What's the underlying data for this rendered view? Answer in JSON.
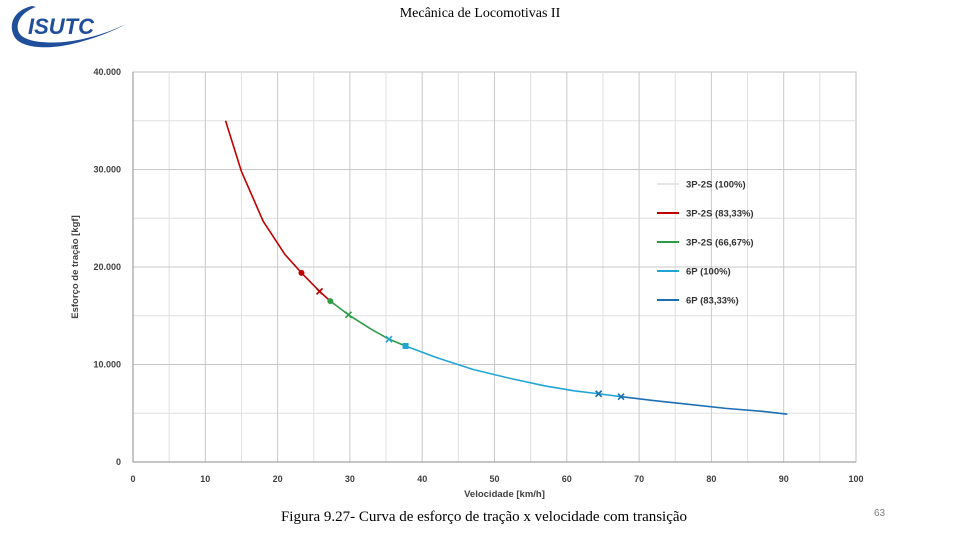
{
  "header": {
    "logo_text": "ISUTC",
    "title": "Mecânica de Locomotivas II"
  },
  "chart_data": {
    "type": "line",
    "title": "",
    "xlabel": "Velocidade [km/h]",
    "ylabel": "Esforço de tração [kgf]",
    "xlim": [
      0,
      100
    ],
    "ylim": [
      0,
      40000
    ],
    "x_ticks": [
      "0",
      "10",
      "20",
      "30",
      "40",
      "50",
      "60",
      "70",
      "80",
      "90",
      "100"
    ],
    "y_ticks": [
      "0",
      "10.000",
      "20.000",
      "30.000",
      "40.000"
    ],
    "grid": true,
    "legend_position": "right",
    "series": [
      {
        "name": "3P-2S (100%)",
        "color": "#e6e6e6",
        "x": [],
        "y": []
      },
      {
        "name": "3P-2S (83,33%)",
        "color": "#c00000",
        "x": [
          12.8,
          15,
          18,
          21,
          23.3,
          25.8,
          27.3
        ],
        "y": [
          35000,
          29800,
          24700,
          21300,
          19400,
          17500,
          16500
        ]
      },
      {
        "name": "3P-2S (66,67%)",
        "color": "#2e9c46",
        "x": [
          27.3,
          29.8,
          33,
          35.4,
          37.7
        ],
        "y": [
          16500,
          15100,
          13600,
          12600,
          11900
        ]
      },
      {
        "name": "6P (100%)",
        "color": "#21a6d3",
        "x": [
          37.7,
          42,
          47,
          52,
          57,
          61,
          64.4,
          67.5
        ],
        "y": [
          11900,
          10700,
          9500,
          8600,
          7800,
          7300,
          7000,
          6700
        ]
      },
      {
        "name": "6P (83,33%)",
        "color": "#1d6fb5",
        "x": [
          67.5,
          72,
          77,
          82,
          87,
          90.5
        ],
        "y": [
          6700,
          6300,
          5900,
          5500,
          5200,
          4900
        ]
      }
    ],
    "markers": [
      {
        "x": 23.3,
        "y": 19400,
        "shape": "dot",
        "color": "#c00000"
      },
      {
        "x": 25.8,
        "y": 17500,
        "shape": "x",
        "color": "#c00000"
      },
      {
        "x": 27.3,
        "y": 16500,
        "shape": "dot",
        "color": "#2e9c46"
      },
      {
        "x": 29.8,
        "y": 15100,
        "shape": "x",
        "color": "#2e9c46"
      },
      {
        "x": 35.4,
        "y": 12600,
        "shape": "x",
        "color": "#21a6d3"
      },
      {
        "x": 37.7,
        "y": 11900,
        "shape": "square",
        "color": "#21a6d3"
      },
      {
        "x": 64.4,
        "y": 7000,
        "shape": "x",
        "color": "#1d6fb5"
      },
      {
        "x": 67.5,
        "y": 6700,
        "shape": "x",
        "color": "#1d6fb5"
      }
    ]
  },
  "caption": "Figura 9.27- Curva de esforço de tração x velocidade com transição",
  "page_number": "63"
}
